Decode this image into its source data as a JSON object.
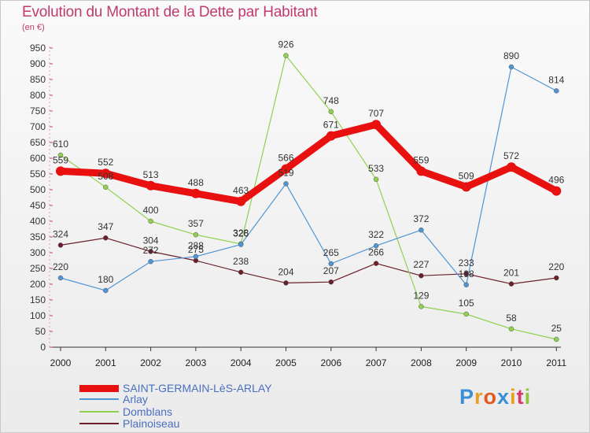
{
  "title": "Evolution du Montant de la Dette par Habitant",
  "unit": "(en €)",
  "brand": {
    "letters": [
      "P",
      "r",
      "o",
      "x",
      "i",
      "t",
      "i"
    ],
    "colors": [
      "#3a8fd6",
      "#e8a020",
      "#e05a20",
      "#3a8fd6",
      "#e8a020",
      "#d43b6b",
      "#8cc63f"
    ]
  },
  "chart_data": {
    "type": "line",
    "categories": [
      "2000",
      "2001",
      "2002",
      "2003",
      "2004",
      "2005",
      "2006",
      "2007",
      "2008",
      "2009",
      "2010",
      "2011"
    ],
    "ylim": [
      0,
      950
    ],
    "yticks": [
      0,
      50,
      100,
      150,
      200,
      250,
      300,
      350,
      400,
      450,
      500,
      550,
      600,
      650,
      700,
      750,
      800,
      850,
      900,
      950
    ],
    "grid": false,
    "legend": "bottom-left",
    "series": [
      {
        "name": "Plainoiseau",
        "color": "#6b1f2a",
        "values": [
          324,
          347,
          304,
          275,
          238,
          204,
          207,
          266,
          227,
          233,
          201,
          220
        ]
      },
      {
        "name": "Domblans",
        "color": "#8fd14f",
        "values": [
          610,
          508,
          400,
          357,
          328,
          926,
          748,
          533,
          129,
          105,
          58,
          25
        ]
      },
      {
        "name": "Arlay",
        "color": "#4f94d4",
        "values": [
          220,
          180,
          272,
          288,
          326,
          519,
          265,
          322,
          372,
          198,
          890,
          814
        ]
      },
      {
        "name": "SAINT-GERMAIN-LèS-ARLAY",
        "color": "#e8110f",
        "values": [
          559,
          552,
          513,
          488,
          463,
          566,
          671,
          707,
          559,
          509,
          572,
          496
        ]
      }
    ]
  }
}
